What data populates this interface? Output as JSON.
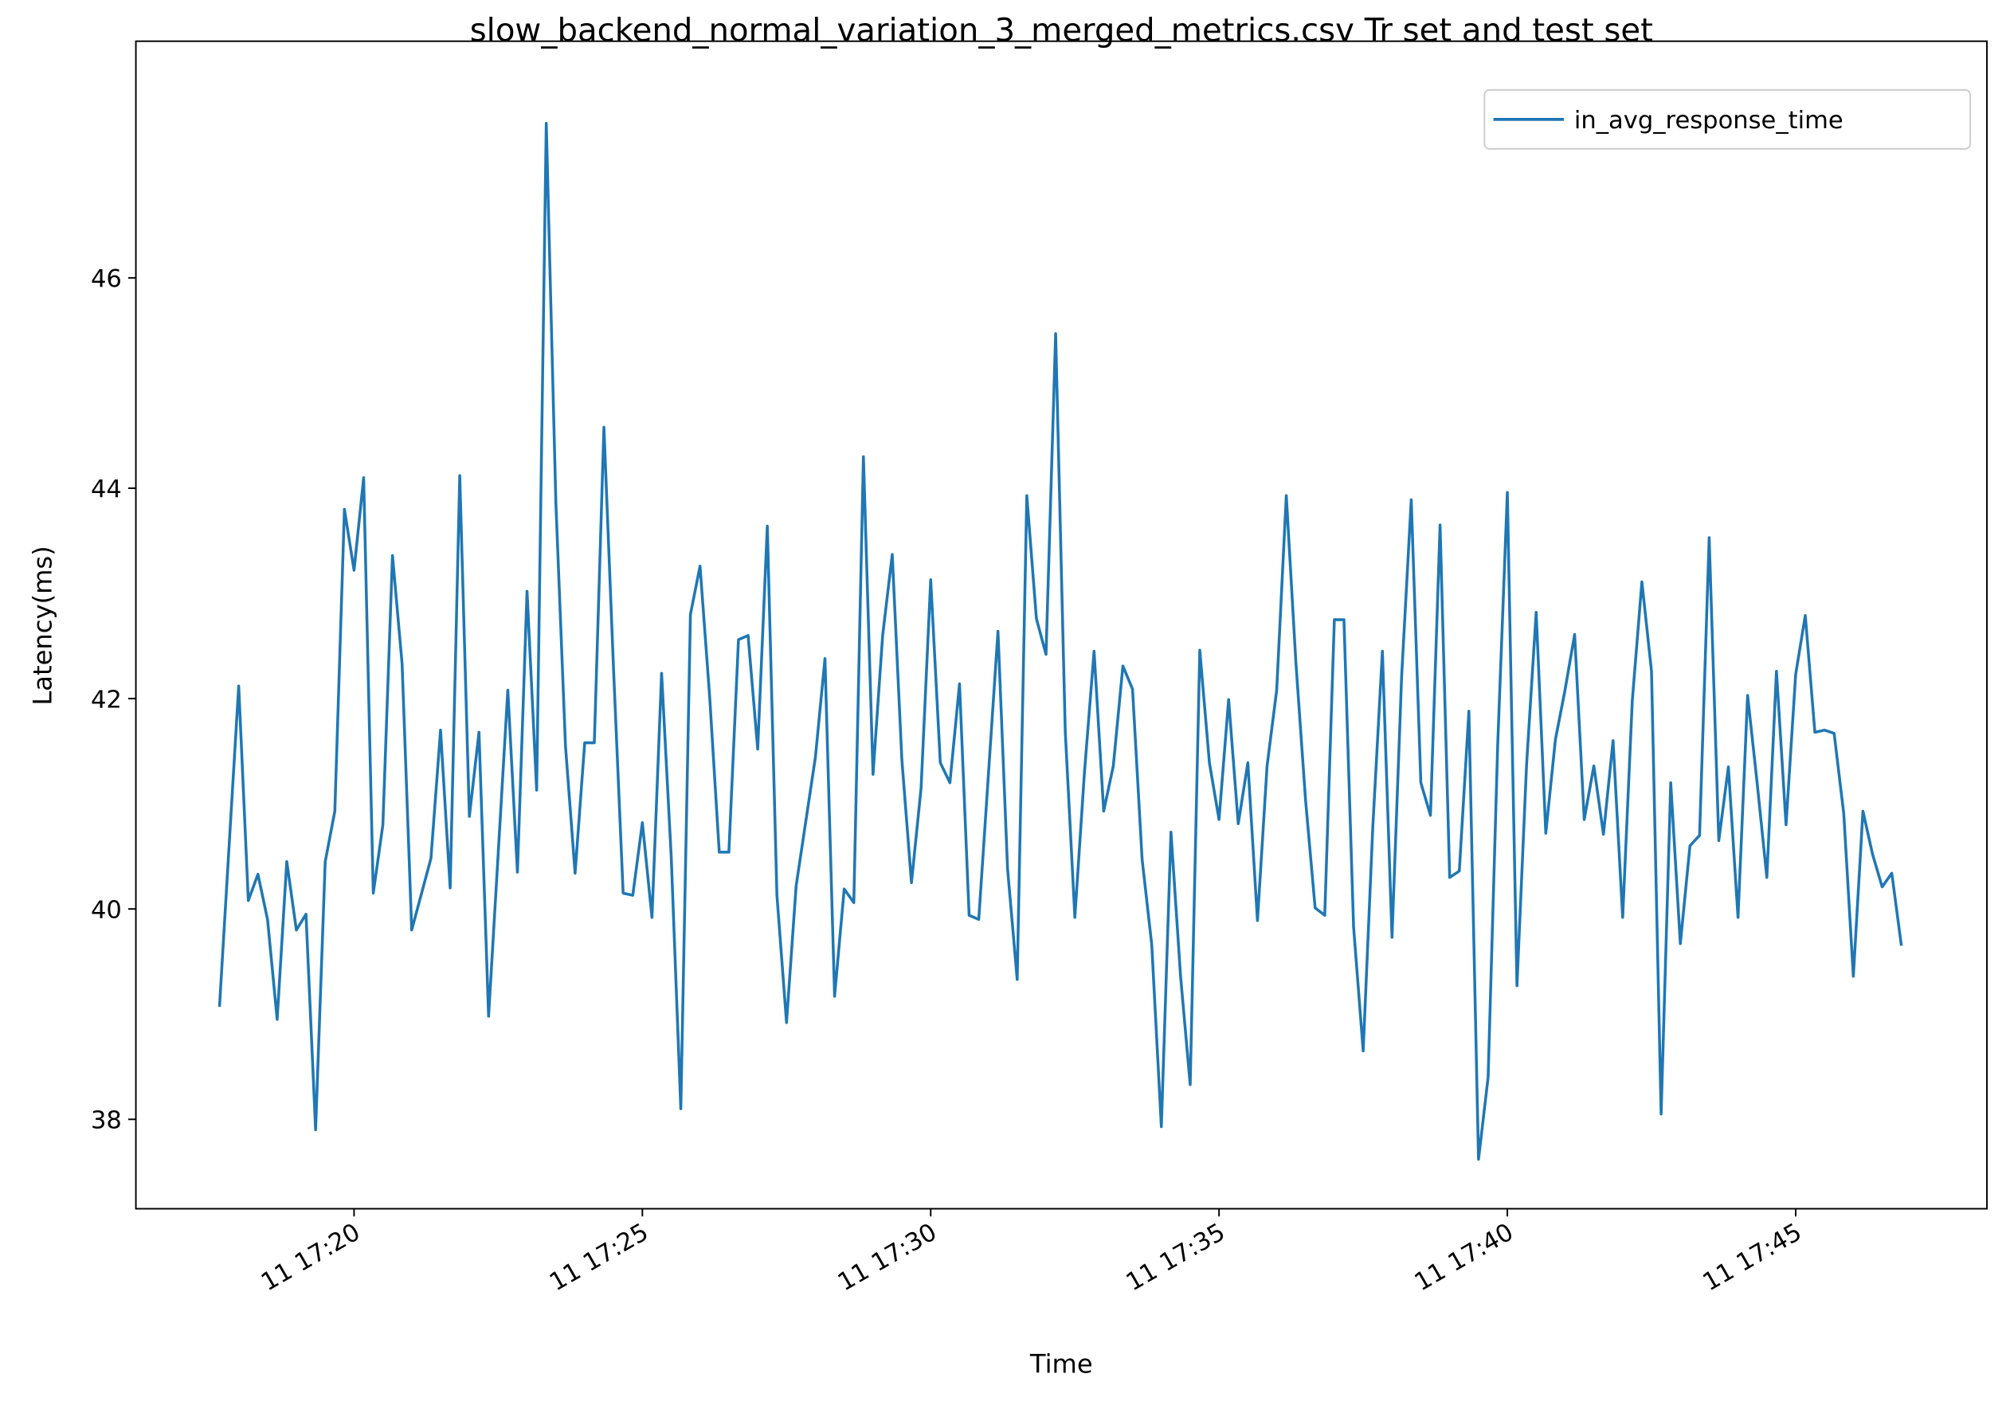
{
  "chart_data": {
    "type": "line",
    "title": "slow_backend_normal_variation_3_merged_metrics.csv Tr set and test set",
    "xlabel": "Time",
    "ylabel": "Latency(ms)",
    "legend": "upper right",
    "grid": false,
    "x": [
      "11 17:17:40",
      "11 17:17:50",
      "11 17:18:00",
      "11 17:18:10",
      "11 17:18:20",
      "11 17:18:30",
      "11 17:18:40",
      "11 17:18:50",
      "11 17:19:00",
      "11 17:19:10",
      "11 17:19:20",
      "11 17:19:30",
      "11 17:19:40",
      "11 17:19:50",
      "11 17:20:00",
      "11 17:20:10",
      "11 17:20:20",
      "11 17:20:30",
      "11 17:20:40",
      "11 17:20:50",
      "11 17:21:00",
      "11 17:21:10",
      "11 17:21:20",
      "11 17:21:30",
      "11 17:21:40",
      "11 17:21:50",
      "11 17:22:00",
      "11 17:22:10",
      "11 17:22:20",
      "11 17:22:30",
      "11 17:22:40",
      "11 17:22:50",
      "11 17:23:00",
      "11 17:23:10",
      "11 17:23:20",
      "11 17:23:30",
      "11 17:23:40",
      "11 17:23:50",
      "11 17:24:00",
      "11 17:24:10",
      "11 17:24:20",
      "11 17:24:30",
      "11 17:24:40",
      "11 17:24:50",
      "11 17:25:00",
      "11 17:25:10",
      "11 17:25:20",
      "11 17:25:30",
      "11 17:25:40",
      "11 17:25:50",
      "11 17:26:00",
      "11 17:26:10",
      "11 17:26:20",
      "11 17:26:30",
      "11 17:26:40",
      "11 17:26:50",
      "11 17:27:00",
      "11 17:27:10",
      "11 17:27:20",
      "11 17:27:30",
      "11 17:27:40",
      "11 17:27:50",
      "11 17:28:00",
      "11 17:28:10",
      "11 17:28:20",
      "11 17:28:30",
      "11 17:28:40",
      "11 17:28:50",
      "11 17:29:00",
      "11 17:29:10",
      "11 17:29:20",
      "11 17:29:30",
      "11 17:29:40",
      "11 17:29:50",
      "11 17:30:00",
      "11 17:30:10",
      "11 17:30:20",
      "11 17:30:30",
      "11 17:30:40",
      "11 17:30:50",
      "11 17:31:00",
      "11 17:31:10",
      "11 17:31:20",
      "11 17:31:30",
      "11 17:31:40",
      "11 17:31:50",
      "11 17:32:00",
      "11 17:32:10",
      "11 17:32:20",
      "11 17:32:30",
      "11 17:32:40",
      "11 17:32:50",
      "11 17:33:00",
      "11 17:33:10",
      "11 17:33:20",
      "11 17:33:30",
      "11 17:33:40",
      "11 17:33:50",
      "11 17:34:00",
      "11 17:34:10",
      "11 17:34:20",
      "11 17:34:30",
      "11 17:34:40",
      "11 17:34:50",
      "11 17:35:00",
      "11 17:35:10",
      "11 17:35:20",
      "11 17:35:30",
      "11 17:35:40",
      "11 17:35:50",
      "11 17:36:00",
      "11 17:36:10",
      "11 17:36:20",
      "11 17:36:30",
      "11 17:36:40",
      "11 17:36:50",
      "11 17:37:00",
      "11 17:37:10",
      "11 17:37:20",
      "11 17:37:30",
      "11 17:37:40",
      "11 17:37:50",
      "11 17:38:00",
      "11 17:38:10",
      "11 17:38:20",
      "11 17:38:30",
      "11 17:38:40",
      "11 17:38:50",
      "11 17:39:00",
      "11 17:39:10",
      "11 17:39:20",
      "11 17:39:30",
      "11 17:39:40",
      "11 17:39:50",
      "11 17:40:00",
      "11 17:40:10",
      "11 17:40:20",
      "11 17:40:30",
      "11 17:40:40",
      "11 17:40:50",
      "11 17:41:00",
      "11 17:41:10",
      "11 17:41:20",
      "11 17:41:30",
      "11 17:41:40",
      "11 17:41:50",
      "11 17:42:00",
      "11 17:42:10",
      "11 17:42:20",
      "11 17:42:30",
      "11 17:42:40",
      "11 17:42:50",
      "11 17:43:00",
      "11 17:43:10",
      "11 17:43:20",
      "11 17:43:30",
      "11 17:43:40",
      "11 17:43:50",
      "11 17:44:00",
      "11 17:44:10",
      "11 17:44:20",
      "11 17:44:30",
      "11 17:44:40",
      "11 17:44:50",
      "11 17:45:00",
      "11 17:45:10",
      "11 17:45:20",
      "11 17:45:30",
      "11 17:45:40",
      "11 17:45:50",
      "11 17:46:00",
      "11 17:46:10",
      "11 17:46:20",
      "11 17:46:30",
      "11 17:46:40",
      "11 17:46:50"
    ],
    "series": [
      {
        "name": "in_avg_response_time",
        "color": "#1f77b4",
        "values": [
          39.07,
          40.6,
          42.12,
          40.08,
          40.33,
          39.9,
          38.95,
          40.45,
          39.8,
          39.95,
          37.9,
          40.45,
          40.93,
          43.8,
          43.22,
          44.1,
          40.15,
          40.8,
          43.36,
          42.33,
          39.8,
          40.14,
          40.48,
          41.7,
          40.2,
          44.12,
          40.88,
          41.68,
          38.98,
          40.53,
          42.08,
          40.35,
          43.02,
          41.13,
          47.47,
          43.86,
          41.55,
          40.34,
          41.58,
          41.58,
          44.58,
          42.28,
          40.15,
          40.13,
          40.82,
          39.92,
          42.24,
          40.5,
          38.1,
          42.8,
          43.26,
          42.02,
          40.54,
          40.54,
          42.56,
          42.6,
          41.52,
          43.64,
          40.13,
          38.92,
          40.22,
          40.83,
          41.44,
          42.38,
          39.17,
          40.19,
          40.06,
          44.3,
          41.28,
          42.6,
          43.37,
          41.42,
          40.25,
          41.15,
          43.13,
          41.39,
          41.2,
          42.14,
          39.94,
          39.9,
          41.27,
          42.64,
          40.38,
          39.33,
          43.93,
          42.76,
          42.42,
          45.47,
          41.69,
          39.92,
          41.3,
          42.45,
          40.93,
          41.36,
          42.31,
          42.09,
          40.47,
          39.66,
          37.93,
          40.73,
          39.36,
          38.33,
          42.46,
          41.39,
          40.85,
          41.99,
          40.81,
          41.39,
          39.89,
          41.36,
          42.08,
          43.93,
          42.34,
          41.04,
          40.01,
          39.94,
          42.75,
          42.75,
          39.83,
          38.65,
          40.78,
          42.45,
          39.73,
          42.21,
          43.89,
          41.2,
          40.89,
          43.65,
          40.3,
          40.36,
          41.88,
          37.62,
          38.4,
          41.57,
          43.96,
          39.27,
          41.37,
          42.82,
          40.72,
          41.61,
          42.08,
          42.61,
          40.85,
          41.36,
          40.71,
          41.6,
          39.92,
          41.98,
          43.11,
          42.26,
          38.05,
          41.2,
          39.67,
          40.6,
          40.7,
          43.53,
          40.65,
          41.35,
          39.92,
          42.03,
          41.19,
          40.3,
          42.26,
          40.8,
          42.23,
          42.79,
          41.68,
          41.7,
          41.67,
          40.91,
          39.36,
          40.93,
          40.52,
          40.21,
          40.34,
          39.65
        ]
      }
    ],
    "xlim": [
      "11 17:16:13",
      "11 17:48:19"
    ],
    "xticks": [
      "11 17:20",
      "11 17:25",
      "11 17:30",
      "11 17:35",
      "11 17:40",
      "11 17:45"
    ],
    "ylim": [
      37.15,
      48.25
    ],
    "yticks": [
      38,
      40,
      42,
      44,
      46
    ]
  }
}
